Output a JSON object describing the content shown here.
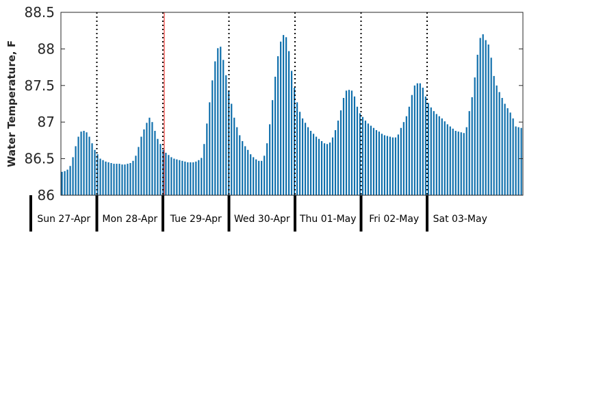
{
  "chart_data": {
    "type": "bar",
    "title": "",
    "xlabel": "",
    "ylabel": "Water Temperature, F",
    "ylim": [
      86,
      88.5
    ],
    "yticks": [
      "86",
      "86.5",
      "87",
      "87.5",
      "88",
      "88.5"
    ],
    "bar_color": "#0f6fac",
    "marker_color": "#e8160c",
    "grid": false,
    "days": [
      "Sun 27-Apr",
      "Mon 28-Apr",
      "Tue 29-Apr",
      "Wed 30-Apr",
      "Thu 01-May",
      "Fri 02-May",
      "Sat 03-May"
    ],
    "series": [
      {
        "values": [
          86.32,
          86.33,
          86.35,
          86.4,
          86.52,
          86.67,
          86.8,
          86.87,
          86.88,
          86.86,
          86.8,
          86.71,
          86.62,
          86.56,
          86.5,
          86.48,
          86.46,
          86.45,
          86.44,
          86.43,
          86.43,
          86.43,
          86.42,
          86.42,
          86.43,
          86.44,
          86.47,
          86.54,
          86.66,
          86.8,
          86.9,
          86.99,
          87.06,
          87.0,
          86.88,
          86.77,
          86.7,
          86.62,
          86.58,
          86.55,
          86.52,
          86.5,
          86.49,
          86.48,
          86.47,
          86.46,
          86.45,
          86.45,
          86.45,
          86.46,
          86.48,
          86.51,
          86.7,
          86.98,
          87.27,
          87.57,
          87.83,
          88.01,
          88.03,
          87.85,
          87.64,
          87.43,
          87.25,
          87.06,
          86.93,
          86.82,
          86.74,
          86.67,
          86.62,
          86.56,
          86.52,
          86.49,
          86.47,
          86.47,
          86.54,
          86.71,
          86.97,
          87.3,
          87.62,
          87.9,
          88.1,
          88.19,
          88.16,
          87.97,
          87.7,
          87.47,
          87.27,
          87.14,
          87.05,
          86.99,
          86.93,
          86.88,
          86.84,
          86.8,
          86.77,
          86.74,
          86.71,
          86.7,
          86.72,
          86.79,
          86.89,
          87.02,
          87.16,
          87.33,
          87.43,
          87.44,
          87.43,
          87.35,
          87.21,
          87.12,
          87.07,
          87.02,
          86.98,
          86.95,
          86.92,
          86.89,
          86.87,
          86.84,
          86.82,
          86.81,
          86.8,
          86.79,
          86.79,
          86.83,
          86.92,
          87.0,
          87.08,
          87.21,
          87.37,
          87.5,
          87.53,
          87.53,
          87.47,
          87.35,
          87.26,
          87.2,
          87.15,
          87.11,
          87.08,
          87.05,
          87.01,
          86.97,
          86.94,
          86.91,
          86.88,
          86.87,
          86.86,
          86.85,
          86.93,
          87.15,
          87.34,
          87.61,
          87.92,
          88.15,
          88.2,
          88.12,
          88.06,
          87.88,
          87.63,
          87.5,
          87.41,
          87.33,
          87.25,
          87.19,
          87.13,
          87.05,
          86.94,
          86.93,
          86.92
        ]
      }
    ]
  }
}
